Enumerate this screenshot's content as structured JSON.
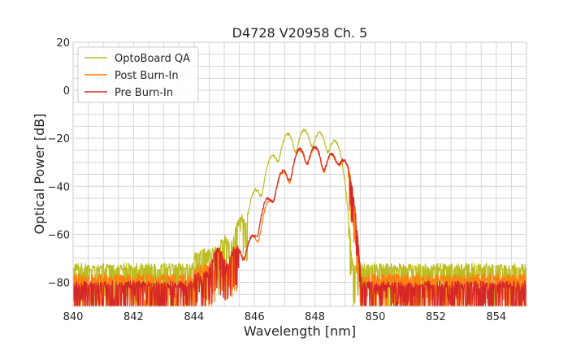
{
  "chart_data": {
    "type": "line",
    "title": "D4728 V20958 Ch. 5",
    "xlabel": "Wavelength [nm]",
    "ylabel": "Optical Power [dB]",
    "xlim": [
      840,
      855
    ],
    "ylim": [
      -90,
      20
    ],
    "xticks": [
      840,
      842,
      844,
      846,
      848,
      850,
      852,
      854
    ],
    "xtick_labels": [
      "840",
      "842",
      "844",
      "846",
      "848",
      "850",
      "852",
      "854"
    ],
    "yticks": [
      20,
      0,
      -20,
      -40,
      -60,
      -80
    ],
    "ytick_labels": [
      "20",
      "0",
      "−20",
      "−40",
      "−60",
      "−80"
    ],
    "x_minor_step": 0.5,
    "y_minor_step": 5,
    "grid": true,
    "legend_position": "top-left",
    "noise_floor": {
      "optoboard_qa": -73.5,
      "post_burn_in": -78,
      "pre_burn_in": -81,
      "clip": -90
    },
    "series": [
      {
        "name": "OptoBoard QA",
        "color": "#bcbd22",
        "peaks": [
          [
            844.3,
            -71
          ],
          [
            844.65,
            -70
          ],
          [
            845.0,
            -62.5
          ],
          [
            845.55,
            -53
          ],
          [
            846.05,
            -41.5
          ],
          [
            846.6,
            -27
          ],
          [
            847.1,
            -18
          ],
          [
            847.65,
            -16.5
          ],
          [
            848.15,
            -17.5
          ],
          [
            848.65,
            -21
          ]
        ],
        "edges": [
          845.8,
          849.1
        ]
      },
      {
        "name": "Post Burn-In",
        "color": "#ff7f0e",
        "peaks": [
          [
            844.8,
            -68
          ],
          [
            845.4,
            -66
          ],
          [
            845.95,
            -61
          ],
          [
            846.5,
            -46
          ],
          [
            846.95,
            -34
          ],
          [
            847.5,
            -25
          ],
          [
            848.0,
            -24
          ],
          [
            848.55,
            -27
          ],
          [
            848.95,
            -29.5
          ]
        ],
        "edges": [
          845.5,
          849.1
        ]
      },
      {
        "name": "Pre Burn-In",
        "color": "#d62728",
        "peaks": [
          [
            844.8,
            -67
          ],
          [
            845.4,
            -65.5
          ],
          [
            845.95,
            -60.5
          ],
          [
            846.45,
            -45
          ],
          [
            846.95,
            -33.5
          ],
          [
            847.5,
            -24.5
          ],
          [
            848.0,
            -23.5
          ],
          [
            848.55,
            -26.5
          ],
          [
            848.95,
            -29
          ]
        ],
        "edges": [
          845.5,
          849.15
        ]
      }
    ]
  }
}
